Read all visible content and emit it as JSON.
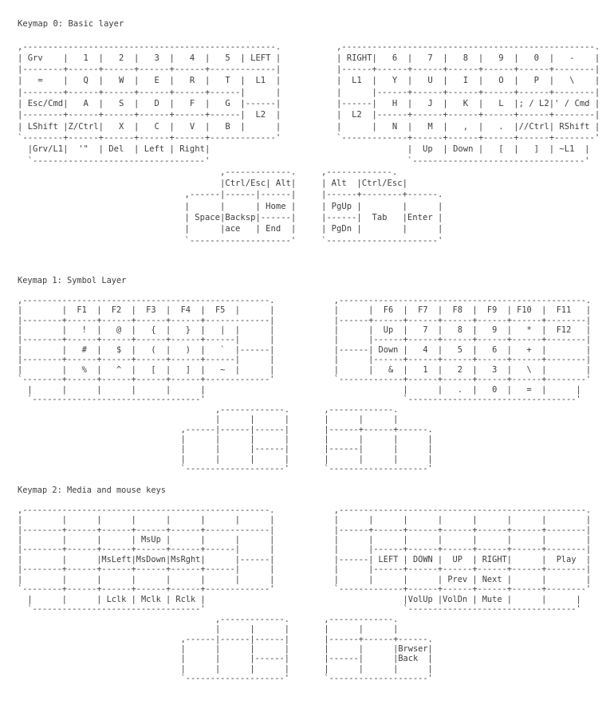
{
  "page": {
    "background": "#ffffff",
    "text_color": "#3b3e42"
  },
  "keymaps": [
    {
      "title": "Keymap 0: Basic layer",
      "lines": [
        ",--------------------------------------------------.           ,--------------------------------------------------.",
        "| Grv    |   1  |   2  |   3  |   4  |   5  | LEFT |           | RIGHT|   6  |   7  |   8  |   9  |   0  |   -    |",
        "|--------+------+------+------+------+-------------|           |------+------+------+------+------+------+--------|",
        "|   =    |   Q  |   W  |   E  |   R  |   T  |  L1  |           |  L1  |   Y  |   U  |   I  |   O  |   P  |   \\    |",
        "|--------+------+------+------+------+------|      |           |      |------+------+------+------+------+--------|",
        "| Esc/Cmd|   A  |   S  |   D  |   F  |   G  |------|           |------|   H  |   J  |   K  |   L  |; / L2|' / Cmd |",
        "|--------+------+------+------+------+------|  L2  |           |  L2  |------+------+------+------+------+--------|",
        "| LShift |Z/Ctrl|   X  |   C  |   V  |   B  |      |           |      |   N  |   M  |   ,  |   .  |//Ctrl| RShift |",
        "`--------+------+------+------+------+-------------'           `-------------+------+------+------+------+--------'",
        "  |Grv/L1|  '\"  | Del  | Left | Right|                                       |  Up  | Down |   [  |   ]  | ~L1  |",
        "  `----------------------------------'                                       `----------------------------------'",
        "                                        ,-------------.     ,-------------.",
        "                                        |Ctrl/Esc| Alt|     | Alt  |Ctrl/Esc|",
        "                                 ,------|------|------|     |------+--------+------.",
        "                                 |      |      | Home |     | PgUp |        |      |",
        "                                 | Space|Backsp|------|     |------|  Tab   |Enter |",
        "                                 |      |ace   | End  |     | PgDn |        |      |",
        "                                 `--------------------'     `----------------------'"
      ]
    },
    {
      "title": "Keymap 1: Symbol Layer",
      "lines": [
        ",--------------------------------------------------.            ,--------------------------------------------------.",
        "|        |  F1  |  F2  |  F3  |  F4  |  F5  |      |            |      |  F6  |  F7  |  F8  |  F9  | F10  |  F11   |",
        "|--------+------+------+------+------+-------------|            |------+------+------+------+------+------+--------|",
        "|        |   !  |   @  |   {  |   }  |   |  |      |            |      |  Up  |   7  |   8  |   9  |   *  |  F12   |",
        "|--------+------+------+------+------+------|      |            |      |------+------+------+------+------+--------|",
        "|        |   #  |   $  |   (  |   )  |   `  |------|            |------| Down |   4  |   5  |   6  |   +  |        |",
        "|--------+------+------+------+------+------|      |            |      |------+------+------+------+------+--------|",
        "|        |   %  |   ^  |   [  |   ]  |   ~  |      |            |      |   &  |   1  |   2  |   3  |   \\  |        |",
        "`--------+------+------+------+------+-------------'            `-------------+------+------+------+------+--------'",
        "  |      |      |      |      |      |                                        |      |   .  |   0  |   =  |      |",
        "  `----------------------------------'                                        `----------------------------------'",
        "                                        ,-------------.       ,-------------.",
        "                                        |      |      |       |      |      |",
        "                                 ,------|------|------|       |------+------+------.",
        "                                 |      |      |      |       |      |      |      |",
        "                                 |      |      |------|       |------|      |      |",
        "                                 |      |      |      |       |      |      |      |",
        "                                 `--------------------'       `--------------------'"
      ]
    },
    {
      "title": "Keymap 2: Media and mouse keys",
      "lines": [
        ",--------------------------------------------------.            ,--------------------------------------------------.",
        "|        |      |      |      |      |      |      |            |      |      |      |      |      |      |        |",
        "|--------+------+------+------+------+-------------|            |------+------+------+------+------+------+--------|",
        "|        |      |      | MsUp |      |      |      |            |      |      |      |      |      |      |        |",
        "|--------+------+------+------+------+------|      |            |      |------+------+------+------+------+--------|",
        "|        |      |MsLeft|MsDown|MsRght|      |------|            |------| LEFT | DOWN |  UP  | RIGHT|      |  Play  |",
        "|--------+------+------+------+------+------|      |            |      |------+------+------+------+------+--------|",
        "|        |      |      |      |      |      |      |            |      |      |      | Prev | Next |      |        |",
        "`--------+------+------+------+------+-------------'            `-------------+------+------+------+------+--------'",
        "  |      |      | Lclk | Mclk | Rclk |                                        |VolUp |VolDn | Mute |      |      |",
        "  `----------------------------------'                                        `----------------------------------'",
        "                                        ,-------------.       ,-------------.",
        "                                        |      |      |       |      |      |",
        "                                 ,------|------|------|       |------+------+------.",
        "                                 |      |      |      |       |      |      |Brwser|",
        "                                 |      |      |------|       |------|      |Back  |",
        "                                 |      |      |      |       |      |      |      |",
        "                                 `--------------------'       `--------------------'"
      ]
    }
  ]
}
